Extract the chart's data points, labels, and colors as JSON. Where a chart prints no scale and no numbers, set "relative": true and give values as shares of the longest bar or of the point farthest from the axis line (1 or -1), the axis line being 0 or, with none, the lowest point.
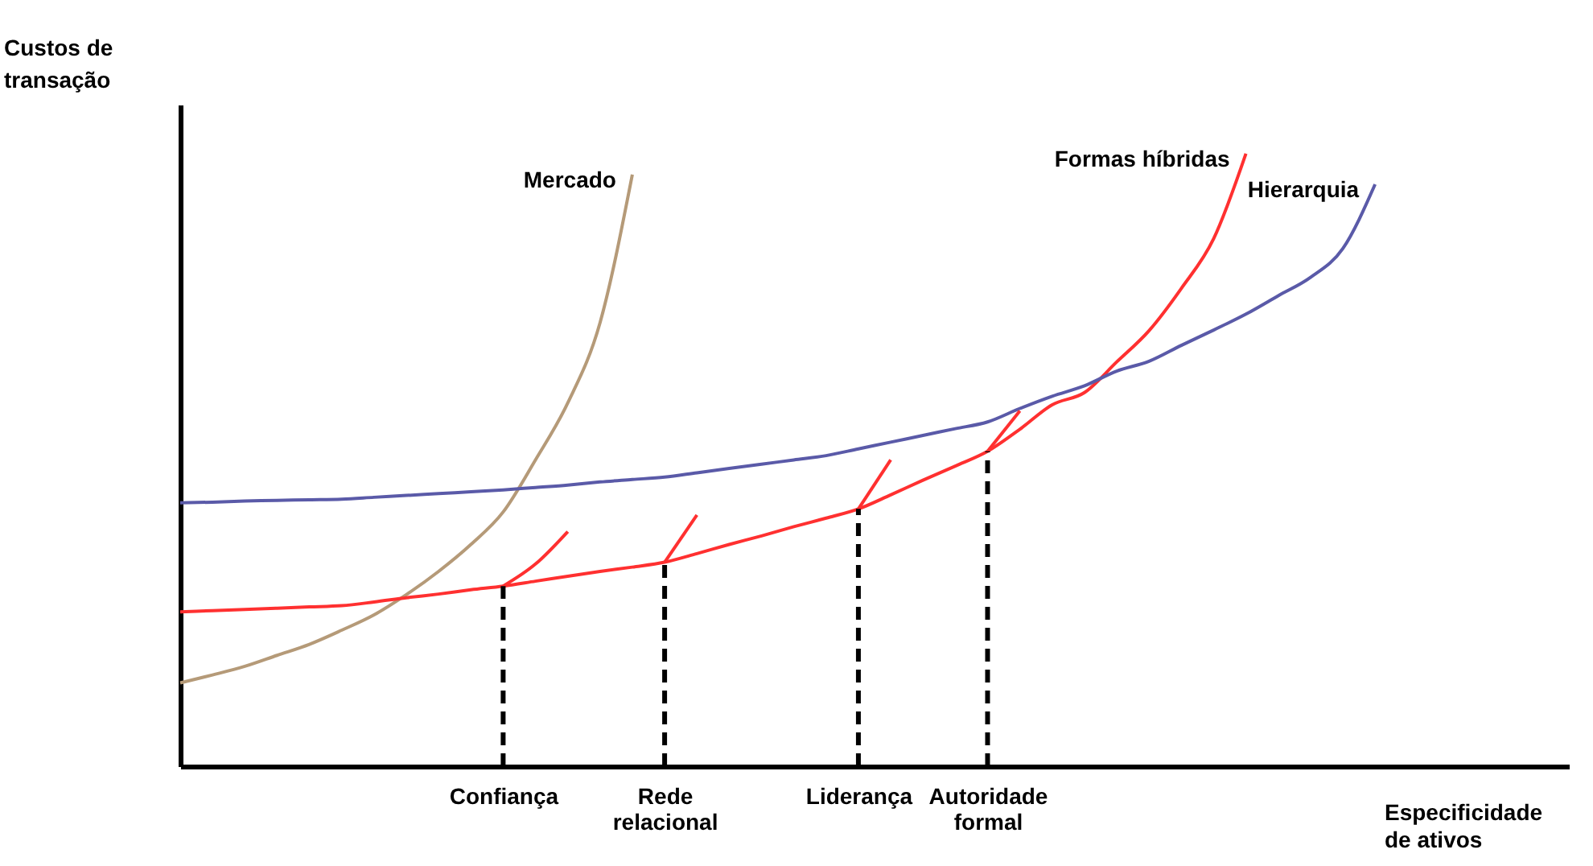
{
  "chart_data": {
    "type": "line",
    "relative": true,
    "xlabel": "Especificidade de ativos",
    "ylabel": "Custos de transação",
    "grid": false,
    "legend": false,
    "marker": "none",
    "categories": [
      null,
      null,
      null,
      null,
      null,
      null,
      null,
      null,
      null,
      null,
      "Confiança",
      null,
      null,
      null,
      null,
      "Rede relacional",
      null,
      null,
      null,
      null,
      null,
      "Liderança",
      null,
      null,
      null,
      "Autoridade formal",
      null,
      null,
      null,
      null,
      null,
      null,
      null,
      null,
      null,
      null,
      null,
      null,
      null,
      null,
      null,
      null,
      null,
      null
    ],
    "series": [
      {
        "name": "Mercado",
        "color": "#b59a78",
        "values": [
          0.136,
          0.149,
          0.163,
          0.181,
          0.199,
          0.222,
          0.247,
          0.28,
          0.318,
          0.362,
          0.415,
          0.5,
          0.593,
          0.724,
          0.966,
          null,
          null,
          null,
          null,
          null,
          null,
          null,
          null,
          null,
          null,
          null,
          null,
          null,
          null,
          null,
          null,
          null,
          null,
          null,
          null,
          null,
          null,
          null,
          null,
          null,
          null,
          null,
          null,
          null
        ]
      },
      {
        "name": "Formas híbridas",
        "color": "#ff3030",
        "values": [
          0.252,
          0.254,
          0.256,
          0.258,
          0.26,
          0.262,
          0.268,
          0.275,
          0.281,
          0.288,
          0.294,
          0.302,
          0.31,
          0.318,
          0.325,
          0.333,
          0.347,
          0.362,
          0.376,
          0.391,
          0.405,
          0.42,
          0.443,
          0.467,
          0.49,
          0.514,
          0.55,
          0.59,
          0.61,
          0.66,
          0.711,
          0.78,
          0.861,
          1.0,
          null,
          null,
          null,
          null,
          null,
          null,
          null,
          null,
          null,
          null
        ]
      },
      {
        "name": "Hierarquia",
        "color": "#5a5aa8",
        "values": [
          0.43,
          0.431,
          0.433,
          0.434,
          0.435,
          0.436,
          0.439,
          0.442,
          0.445,
          0.448,
          0.451,
          0.455,
          0.459,
          0.464,
          0.468,
          0.472,
          0.479,
          0.486,
          0.493,
          0.5,
          0.507,
          0.518,
          0.529,
          0.54,
          0.551,
          0.562,
          0.584,
          0.604,
          0.621,
          0.645,
          0.661,
          0.687,
          0.712,
          0.738,
          0.768,
          0.798,
          0.845,
          0.95,
          null,
          null,
          null,
          null,
          null,
          null
        ]
      },
      {
        "color": "#ff3030",
        "values": [
          null,
          null,
          null,
          null,
          null,
          null,
          null,
          null,
          null,
          null,
          0.294,
          0.33,
          0.383,
          null,
          null,
          null,
          null,
          null,
          null,
          null,
          null,
          null,
          null,
          null,
          null,
          null,
          null,
          null,
          null,
          null,
          null,
          null,
          null,
          null,
          null,
          null,
          null,
          null,
          null,
          null,
          null,
          null,
          null,
          null
        ]
      },
      {
        "color": "#ff3030",
        "values": [
          null,
          null,
          null,
          null,
          null,
          null,
          null,
          null,
          null,
          null,
          null,
          null,
          null,
          null,
          null,
          0.333,
          0.41,
          null,
          null,
          null,
          null,
          null,
          null,
          null,
          null,
          null,
          null,
          null,
          null,
          null,
          null,
          null,
          null,
          null,
          null,
          null,
          null,
          null,
          null,
          null,
          null,
          null,
          null,
          null
        ]
      },
      {
        "color": "#ff3030",
        "values": [
          null,
          null,
          null,
          null,
          null,
          null,
          null,
          null,
          null,
          null,
          null,
          null,
          null,
          null,
          null,
          null,
          null,
          null,
          null,
          null,
          null,
          0.42,
          0.5,
          null,
          null,
          null,
          null,
          null,
          null,
          null,
          null,
          null,
          null,
          null,
          null,
          null,
          null,
          null,
          null,
          null,
          null,
          null,
          null,
          null
        ]
      },
      {
        "color": "#ff3030",
        "values": [
          null,
          null,
          null,
          null,
          null,
          null,
          null,
          null,
          null,
          null,
          null,
          null,
          null,
          null,
          null,
          null,
          null,
          null,
          null,
          null,
          null,
          null,
          null,
          null,
          null,
          0.514,
          0.58,
          null,
          null,
          null,
          null,
          null,
          null,
          null,
          null,
          null,
          null,
          null,
          null,
          null,
          null,
          null,
          null,
          null
        ]
      }
    ],
    "ref_lines": [
      {
        "axis": "x",
        "value": "Confiança",
        "line_style": "dashed",
        "color": "#000000"
      },
      {
        "axis": "x",
        "value": "Rede relacional",
        "line_style": "dashed",
        "color": "#000000"
      },
      {
        "axis": "x",
        "value": "Liderança",
        "line_style": "dashed",
        "color": "#000000"
      },
      {
        "axis": "x",
        "value": "Autoridade formal",
        "line_style": "dashed",
        "color": "#000000"
      }
    ]
  }
}
